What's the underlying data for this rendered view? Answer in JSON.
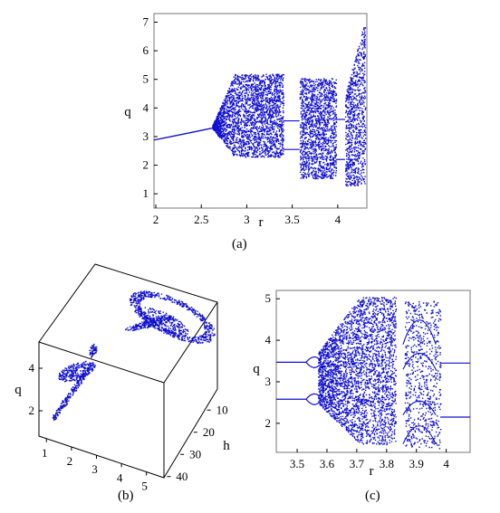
{
  "chart_data": [
    {
      "panel": "(a)",
      "type": "scatter",
      "title": "",
      "xlabel": "r",
      "ylabel": "q",
      "xlim": [
        1.98,
        4.32
      ],
      "ylim": [
        0.5,
        7.3
      ],
      "xticks": [
        "2",
        "2.5",
        "3",
        "3.5",
        "4"
      ],
      "yticks": [
        "1",
        "2",
        "3",
        "4",
        "5",
        "6",
        "7"
      ],
      "color": "#1010d0",
      "branch_fixed_point": {
        "x": [
          1.98,
          2.2,
          2.4,
          2.6,
          2.7
        ],
        "y": [
          2.88,
          3.02,
          3.15,
          3.28,
          3.35
        ]
      },
      "chaotic_bands": [
        {
          "r": [
            2.62,
            3.4
          ],
          "q_low": 2.3,
          "q_high": 5.2
        },
        {
          "r": [
            3.58,
            3.98
          ],
          "q_low": 1.55,
          "q_high": 5.05
        },
        {
          "r": [
            4.08,
            4.3
          ],
          "q_low": 1.3,
          "q_high": 7.1
        }
      ],
      "grid": false
    },
    {
      "panel": "(b)",
      "type": "scatter",
      "title": "",
      "xlabel": "",
      "ylabel": "q",
      "zlabel": "h",
      "xticks": [
        "1",
        "2",
        "3",
        "4",
        "5"
      ],
      "yticks": [
        "2",
        "4"
      ],
      "zticks": [
        "10",
        "20",
        "30",
        "40"
      ],
      "color": "#1010d0",
      "grid": false
    },
    {
      "panel": "(c)",
      "type": "scatter",
      "title": "",
      "xlabel": "r",
      "ylabel": "q",
      "xlim": [
        3.43,
        4.08
      ],
      "ylim": [
        1.3,
        5.2
      ],
      "xticks": [
        "3.5",
        "3.6",
        "3.7",
        "3.8",
        "3.9",
        "4"
      ],
      "yticks": [
        "2",
        "3",
        "4",
        "5"
      ],
      "color": "#1010d0",
      "periodic_branches": [
        3.47,
        2.58
      ],
      "chaotic_bands": [
        {
          "r": [
            3.57,
            3.83
          ],
          "q_low": 1.5,
          "q_high": 5.05
        },
        {
          "r": [
            3.86,
            3.98
          ],
          "q_low": 1.4,
          "q_high": 4.95
        }
      ],
      "grid": false
    }
  ]
}
